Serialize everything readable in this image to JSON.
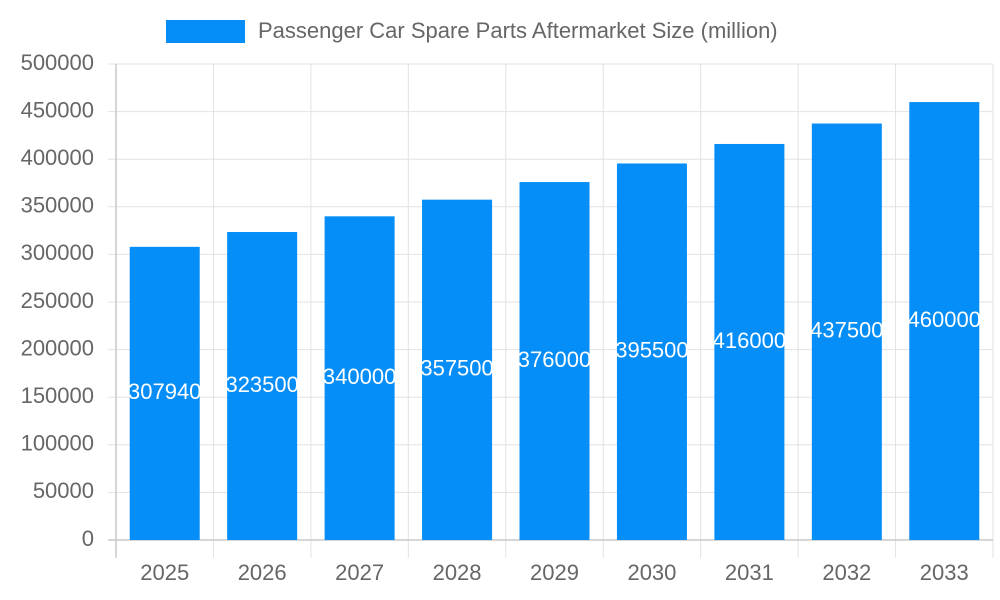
{
  "chart_data": {
    "type": "bar",
    "categories": [
      "2025",
      "2026",
      "2027",
      "2028",
      "2029",
      "2030",
      "2031",
      "2032",
      "2033"
    ],
    "series": [
      {
        "name": "Passenger Car Spare Parts Aftermarket Size (million)",
        "color": "#058df8",
        "values": [
          307940,
          323500,
          340000,
          357500,
          376000,
          395500,
          416000,
          437500,
          460000
        ]
      }
    ],
    "ylim": [
      0,
      500000
    ],
    "yticks": [
      0,
      50000,
      100000,
      150000,
      200000,
      250000,
      300000,
      350000,
      400000,
      450000,
      500000
    ],
    "grid": true,
    "legend": "top",
    "data_labels": true
  }
}
